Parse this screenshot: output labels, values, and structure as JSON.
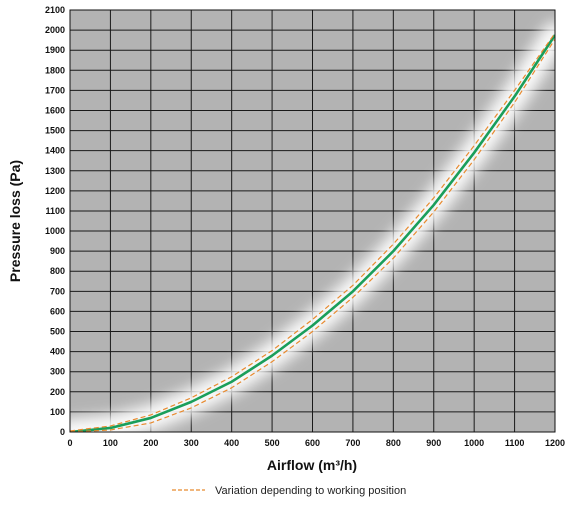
{
  "chart_data": {
    "type": "line",
    "title": "",
    "xlabel": "Airflow (m³/h)",
    "ylabel": "Pressure loss (Pa)",
    "xlim": [
      0,
      1200
    ],
    "ylim": [
      0,
      2100
    ],
    "x_ticks": [
      0,
      100,
      200,
      300,
      400,
      500,
      600,
      700,
      800,
      900,
      1000,
      1100,
      1200
    ],
    "y_ticks": [
      0,
      100,
      200,
      300,
      400,
      500,
      600,
      700,
      800,
      900,
      1000,
      1100,
      1200,
      1300,
      1400,
      1500,
      1600,
      1700,
      1800,
      1900,
      2000,
      2100
    ],
    "grid": true,
    "legend_position": "bottom",
    "series": [
      {
        "style": "solid",
        "color": "#1a9e5a",
        "x": [
          0,
          100,
          200,
          300,
          400,
          500,
          600,
          700,
          800,
          900,
          1000,
          1100,
          1200
        ],
        "y": [
          0,
          20,
          70,
          150,
          250,
          380,
          530,
          700,
          900,
          1130,
          1390,
          1670,
          1975
        ]
      },
      {
        "name": "Variation depending to working position",
        "style": "dashed",
        "color": "#e88a2e",
        "x": [
          0,
          100,
          200,
          300,
          400,
          500,
          600,
          700,
          800,
          900,
          1000,
          1100,
          1200
        ],
        "y": [
          5,
          30,
          85,
          170,
          275,
          405,
          560,
          730,
          935,
          1165,
          1425,
          1700,
          1985
        ]
      },
      {
        "style": "dashed",
        "color": "#e88a2e",
        "x": [
          0,
          100,
          200,
          300,
          400,
          500,
          600,
          700,
          800,
          900,
          1000,
          1100,
          1200
        ],
        "y": [
          0,
          10,
          45,
          120,
          220,
          350,
          500,
          670,
          865,
          1095,
          1355,
          1640,
          1955
        ]
      }
    ],
    "colors": {
      "plot_background": "#b3b3b3",
      "grid": "#1a1a1a",
      "glow": "#ffffff"
    }
  }
}
